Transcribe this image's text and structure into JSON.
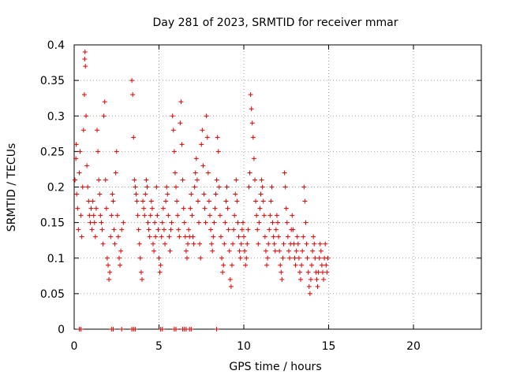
{
  "chart_data": {
    "type": "scatter",
    "title": "Day 281 of 2023, SRMTID for receiver mmar",
    "xlabel": "GPS time / hours",
    "ylabel": "SRMTID / TECUs",
    "xlim": [
      0,
      24
    ],
    "ylim": [
      0,
      0.4
    ],
    "x_ticks": [
      0,
      5,
      10,
      15,
      20
    ],
    "y_ticks": [
      0,
      0.05,
      0.1,
      0.15,
      0.2,
      0.25,
      0.3,
      0.35,
      0.4
    ],
    "x_tick_labels": [
      "0",
      "5",
      "10",
      "15",
      "20"
    ],
    "y_tick_labels": [
      "0",
      "0.05",
      "0.1",
      "0.15",
      "0.2",
      "0.25",
      "0.3",
      "0.35",
      "0.4"
    ],
    "grid": true,
    "marker": "+",
    "color": "#e00000",
    "series": [
      {
        "name": "",
        "points": [
          [
            0.05,
            0.21
          ],
          [
            0.1,
            0.24
          ],
          [
            0.12,
            0.26
          ],
          [
            0.15,
            0.19
          ],
          [
            0.2,
            0.17
          ],
          [
            0.25,
            0.14
          ],
          [
            0.3,
            0.22
          ],
          [
            0.35,
            0.25
          ],
          [
            0.4,
            0.16
          ],
          [
            0.45,
            0.13
          ],
          [
            0.5,
            0.2
          ],
          [
            0.55,
            0.28
          ],
          [
            0.6,
            0.33
          ],
          [
            0.62,
            0.38
          ],
          [
            0.64,
            0.39
          ],
          [
            0.66,
            0.37
          ],
          [
            0.7,
            0.3
          ],
          [
            0.75,
            0.23
          ],
          [
            0.8,
            0.2
          ],
          [
            0.85,
            0.18
          ],
          [
            0.9,
            0.16
          ],
          [
            0.95,
            0.15
          ],
          [
            1.0,
            0.17
          ],
          [
            1.05,
            0.14
          ],
          [
            1.1,
            0.18
          ],
          [
            1.15,
            0.16
          ],
          [
            1.2,
            0.15
          ],
          [
            1.25,
            0.13
          ],
          [
            1.3,
            0.17
          ],
          [
            1.35,
            0.28
          ],
          [
            1.4,
            0.25
          ],
          [
            1.45,
            0.21
          ],
          [
            1.5,
            0.19
          ],
          [
            1.55,
            0.16
          ],
          [
            1.6,
            0.15
          ],
          [
            1.65,
            0.14
          ],
          [
            1.7,
            0.12
          ],
          [
            1.75,
            0.3
          ],
          [
            1.8,
            0.32
          ],
          [
            1.85,
            0.21
          ],
          [
            1.9,
            0.17
          ],
          [
            1.95,
            0.1
          ],
          [
            2.0,
            0.09
          ],
          [
            2.05,
            0.07
          ],
          [
            2.1,
            0.08
          ],
          [
            2.15,
            0.13
          ],
          [
            2.2,
            0.16
          ],
          [
            2.25,
            0.19
          ],
          [
            2.3,
            0.18
          ],
          [
            2.35,
            0.14
          ],
          [
            2.4,
            0.12
          ],
          [
            2.45,
            0.22
          ],
          [
            2.5,
            0.25
          ],
          [
            2.55,
            0.16
          ],
          [
            2.6,
            0.13
          ],
          [
            2.65,
            0.1
          ],
          [
            2.7,
            0.09
          ],
          [
            2.75,
            0.11
          ],
          [
            2.8,
            0.14
          ],
          [
            2.9,
            0.15
          ],
          [
            3.4,
            0.35
          ],
          [
            3.45,
            0.33
          ],
          [
            3.5,
            0.27
          ],
          [
            3.55,
            0.21
          ],
          [
            3.6,
            0.2
          ],
          [
            3.65,
            0.19
          ],
          [
            3.7,
            0.18
          ],
          [
            3.75,
            0.16
          ],
          [
            3.8,
            0.14
          ],
          [
            3.85,
            0.12
          ],
          [
            3.9,
            0.1
          ],
          [
            3.95,
            0.08
          ],
          [
            4.0,
            0.07
          ],
          [
            4.05,
            0.18
          ],
          [
            4.1,
            0.17
          ],
          [
            4.15,
            0.16
          ],
          [
            4.2,
            0.19
          ],
          [
            4.25,
            0.21
          ],
          [
            4.3,
            0.2
          ],
          [
            4.35,
            0.15
          ],
          [
            4.4,
            0.14
          ],
          [
            4.45,
            0.13
          ],
          [
            4.5,
            0.16
          ],
          [
            4.55,
            0.18
          ],
          [
            4.6,
            0.17
          ],
          [
            4.65,
            0.12
          ],
          [
            4.7,
            0.11
          ],
          [
            4.75,
            0.15
          ],
          [
            4.8,
            0.13
          ],
          [
            4.85,
            0.2
          ],
          [
            4.9,
            0.16
          ],
          [
            4.95,
            0.14
          ],
          [
            5.0,
            0.1
          ],
          [
            5.05,
            0.08
          ],
          [
            5.1,
            0.09
          ],
          [
            5.15,
            0.13
          ],
          [
            5.2,
            0.15
          ],
          [
            5.25,
            0.17
          ],
          [
            5.3,
            0.14
          ],
          [
            5.35,
            0.12
          ],
          [
            5.4,
            0.18
          ],
          [
            5.45,
            0.2
          ],
          [
            5.5,
            0.19
          ],
          [
            5.55,
            0.16
          ],
          [
            5.6,
            0.13
          ],
          [
            5.65,
            0.11
          ],
          [
            5.7,
            0.14
          ],
          [
            5.75,
            0.15
          ],
          [
            5.8,
            0.3
          ],
          [
            5.85,
            0.28
          ],
          [
            5.9,
            0.25
          ],
          [
            5.95,
            0.22
          ],
          [
            6.0,
            0.2
          ],
          [
            6.05,
            0.18
          ],
          [
            6.1,
            0.16
          ],
          [
            6.15,
            0.14
          ],
          [
            6.2,
            0.13
          ],
          [
            6.25,
            0.29
          ],
          [
            6.3,
            0.32
          ],
          [
            6.35,
            0.26
          ],
          [
            6.4,
            0.21
          ],
          [
            6.45,
            0.17
          ],
          [
            6.5,
            0.15
          ],
          [
            6.55,
            0.13
          ],
          [
            6.6,
            0.11
          ],
          [
            6.65,
            0.1
          ],
          [
            6.7,
            0.12
          ],
          [
            6.75,
            0.14
          ],
          [
            6.8,
            0.13
          ],
          [
            6.85,
            0.17
          ],
          [
            6.9,
            0.19
          ],
          [
            6.95,
            0.16
          ],
          [
            7.0,
            0.13
          ],
          [
            7.05,
            0.12
          ],
          [
            7.1,
            0.2
          ],
          [
            7.15,
            0.22
          ],
          [
            7.2,
            0.24
          ],
          [
            7.25,
            0.21
          ],
          [
            7.3,
            0.18
          ],
          [
            7.35,
            0.15
          ],
          [
            7.4,
            0.12
          ],
          [
            7.45,
            0.1
          ],
          [
            7.5,
            0.26
          ],
          [
            7.55,
            0.28
          ],
          [
            7.6,
            0.23
          ],
          [
            7.65,
            0.19
          ],
          [
            7.7,
            0.17
          ],
          [
            7.75,
            0.15
          ],
          [
            7.8,
            0.3
          ],
          [
            7.85,
            0.27
          ],
          [
            7.9,
            0.22
          ],
          [
            7.95,
            0.18
          ],
          [
            8.0,
            0.16
          ],
          [
            8.05,
            0.14
          ],
          [
            8.1,
            0.12
          ],
          [
            8.15,
            0.11
          ],
          [
            8.2,
            0.13
          ],
          [
            8.25,
            0.15
          ],
          [
            8.3,
            0.17
          ],
          [
            8.35,
            0.19
          ],
          [
            8.4,
            0.21
          ],
          [
            8.45,
            0.27
          ],
          [
            8.5,
            0.25
          ],
          [
            8.55,
            0.2
          ],
          [
            8.6,
            0.16
          ],
          [
            8.65,
            0.13
          ],
          [
            8.7,
            0.1
          ],
          [
            8.75,
            0.08
          ],
          [
            8.8,
            0.09
          ],
          [
            8.85,
            0.12
          ],
          [
            8.9,
            0.15
          ],
          [
            8.95,
            0.18
          ],
          [
            9.0,
            0.2
          ],
          [
            9.05,
            0.17
          ],
          [
            9.1,
            0.14
          ],
          [
            9.15,
            0.11
          ],
          [
            9.2,
            0.07
          ],
          [
            9.25,
            0.06
          ],
          [
            9.3,
            0.09
          ],
          [
            9.35,
            0.12
          ],
          [
            9.4,
            0.14
          ],
          [
            9.45,
            0.16
          ],
          [
            9.5,
            0.19
          ],
          [
            9.55,
            0.21
          ],
          [
            9.6,
            0.18
          ],
          [
            9.65,
            0.15
          ],
          [
            9.7,
            0.13
          ],
          [
            9.75,
            0.11
          ],
          [
            9.8,
            0.1
          ],
          [
            9.85,
            0.12
          ],
          [
            9.9,
            0.14
          ],
          [
            9.95,
            0.15
          ],
          [
            10.0,
            0.13
          ],
          [
            10.05,
            0.11
          ],
          [
            10.1,
            0.09
          ],
          [
            10.15,
            0.1
          ],
          [
            10.2,
            0.12
          ],
          [
            10.25,
            0.14
          ],
          [
            10.3,
            0.2
          ],
          [
            10.35,
            0.22
          ],
          [
            10.4,
            0.33
          ],
          [
            10.45,
            0.31
          ],
          [
            10.5,
            0.29
          ],
          [
            10.55,
            0.27
          ],
          [
            10.6,
            0.24
          ],
          [
            10.65,
            0.21
          ],
          [
            10.7,
            0.18
          ],
          [
            10.75,
            0.16
          ],
          [
            10.8,
            0.14
          ],
          [
            10.85,
            0.12
          ],
          [
            10.9,
            0.15
          ],
          [
            10.95,
            0.17
          ],
          [
            11.0,
            0.19
          ],
          [
            11.05,
            0.21
          ],
          [
            11.1,
            0.2
          ],
          [
            11.15,
            0.18
          ],
          [
            11.2,
            0.16
          ],
          [
            11.25,
            0.13
          ],
          [
            11.3,
            0.11
          ],
          [
            11.35,
            0.09
          ],
          [
            11.4,
            0.1
          ],
          [
            11.45,
            0.12
          ],
          [
            11.5,
            0.14
          ],
          [
            11.55,
            0.16
          ],
          [
            11.6,
            0.18
          ],
          [
            11.65,
            0.2
          ],
          [
            11.7,
            0.15
          ],
          [
            11.75,
            0.13
          ],
          [
            11.8,
            0.12
          ],
          [
            11.85,
            0.11
          ],
          [
            11.9,
            0.14
          ],
          [
            11.95,
            0.16
          ],
          [
            12.0,
            0.15
          ],
          [
            12.05,
            0.13
          ],
          [
            12.1,
            0.11
          ],
          [
            12.15,
            0.09
          ],
          [
            12.2,
            0.08
          ],
          [
            12.25,
            0.07
          ],
          [
            12.3,
            0.1
          ],
          [
            12.35,
            0.12
          ],
          [
            12.4,
            0.22
          ],
          [
            12.45,
            0.2
          ],
          [
            12.5,
            0.17
          ],
          [
            12.55,
            0.15
          ],
          [
            12.6,
            0.13
          ],
          [
            12.65,
            0.11
          ],
          [
            12.7,
            0.1
          ],
          [
            12.75,
            0.12
          ],
          [
            12.8,
            0.14
          ],
          [
            12.85,
            0.16
          ],
          [
            12.9,
            0.14
          ],
          [
            12.95,
            0.12
          ],
          [
            13.0,
            0.1
          ],
          [
            13.05,
            0.09
          ],
          [
            13.1,
            0.11
          ],
          [
            13.15,
            0.13
          ],
          [
            13.2,
            0.12
          ],
          [
            13.25,
            0.1
          ],
          [
            13.3,
            0.08
          ],
          [
            13.35,
            0.07
          ],
          [
            13.4,
            0.09
          ],
          [
            13.45,
            0.11
          ],
          [
            13.5,
            0.13
          ],
          [
            13.55,
            0.2
          ],
          [
            13.6,
            0.18
          ],
          [
            13.65,
            0.15
          ],
          [
            13.7,
            0.12
          ],
          [
            13.75,
            0.1
          ],
          [
            13.8,
            0.08
          ],
          [
            13.85,
            0.06
          ],
          [
            13.9,
            0.05
          ],
          [
            13.95,
            0.07
          ],
          [
            14.0,
            0.09
          ],
          [
            14.05,
            0.11
          ],
          [
            14.1,
            0.13
          ],
          [
            14.15,
            0.12
          ],
          [
            14.2,
            0.1
          ],
          [
            14.25,
            0.08
          ],
          [
            14.3,
            0.07
          ],
          [
            14.35,
            0.06
          ],
          [
            14.4,
            0.08
          ],
          [
            14.45,
            0.1
          ],
          [
            14.5,
            0.12
          ],
          [
            14.55,
            0.11
          ],
          [
            14.6,
            0.09
          ],
          [
            14.65,
            0.08
          ],
          [
            14.7,
            0.07
          ],
          [
            14.75,
            0.1
          ],
          [
            14.8,
            0.12
          ],
          [
            14.85,
            0.09
          ],
          [
            14.9,
            0.08
          ],
          [
            14.95,
            0.1
          ],
          [
            0.3,
            0.0
          ],
          [
            0.4,
            0.0
          ],
          [
            2.2,
            0.0
          ],
          [
            2.3,
            0.0
          ],
          [
            2.8,
            0.0
          ],
          [
            3.4,
            0.0
          ],
          [
            3.5,
            0.0
          ],
          [
            3.6,
            0.0
          ],
          [
            5.1,
            0.0
          ],
          [
            5.2,
            0.0
          ],
          [
            5.9,
            0.0
          ],
          [
            6.0,
            0.0
          ],
          [
            6.4,
            0.0
          ],
          [
            6.5,
            0.0
          ],
          [
            6.6,
            0.0
          ],
          [
            6.8,
            0.0
          ],
          [
            6.9,
            0.0
          ],
          [
            8.4,
            0.0
          ]
        ]
      }
    ]
  }
}
